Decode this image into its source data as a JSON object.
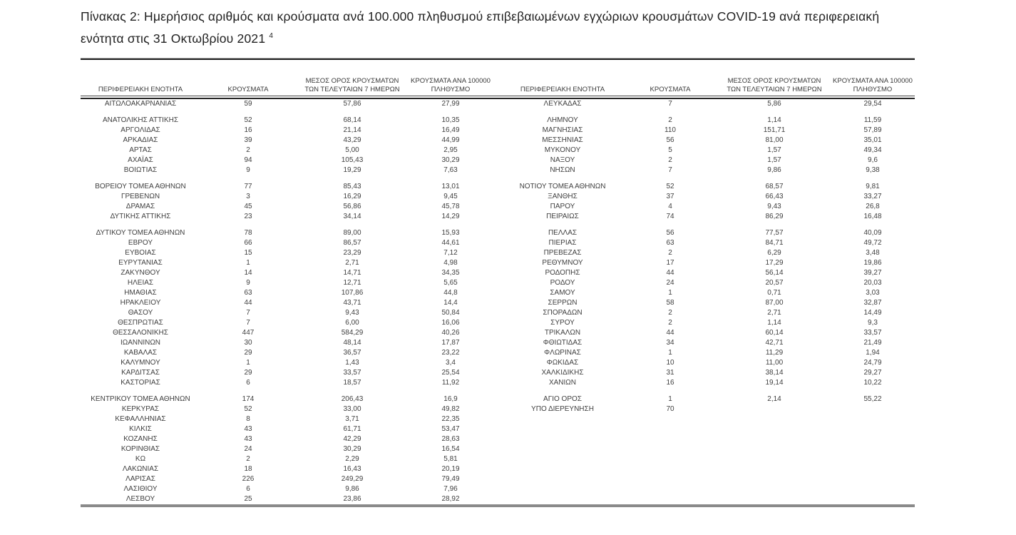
{
  "page": {
    "title_line1": "Πίνακας 2:  Ημερήσιος αριθμός και κρούσματα ανά 100.000 πληθυσμού επιβεβαιωμένων εγχώριων κρουσμάτων COVID-19 ανά περιφερειακή",
    "title_line2": "ενότητα στις 31 Οκτωβρίου 2021 ",
    "title_superscript": "4"
  },
  "table": {
    "headers": {
      "region": "ΠΕΡΙΦΕΡΕΙΑΚΗ ΕΝΟΤΗΤΑ",
      "cases": "ΚΡΟΥΣΜΑΤΑ",
      "avg7_line1": "ΜΕΣΟΣ ΟΡΟΣ ΚΡΟΥΣΜΑΤΩΝ",
      "avg7_line2": "ΤΩΝ ΤΕΛΕΥΤΑΙΩΝ 7 ΗΜΕΡΩΝ",
      "per100k_line1": "ΚΡΟΥΣΜΑΤΑ ΑΝΑ 100000",
      "per100k_line2": "ΠΛΗΘΥΣΜΟ"
    },
    "groups": [
      {
        "left": [
          [
            "ΑΙΤΩΛΟΑΚΑΡΝΑΝΙΑΣ",
            "59",
            "57,86",
            "27,99"
          ]
        ],
        "right": [
          [
            "ΛΕΥΚΑΔΑΣ",
            "7",
            "5,86",
            "29,54"
          ]
        ]
      },
      {
        "left": [
          [
            "ΑΝΑΤΟΛΙΚΗΣ ΑΤΤΙΚΗΣ",
            "52",
            "68,14",
            "10,35"
          ],
          [
            "ΑΡΓΟΛΙΔΑΣ",
            "16",
            "21,14",
            "16,49"
          ],
          [
            "ΑΡΚΑΔΙΑΣ",
            "39",
            "43,29",
            "44,99"
          ],
          [
            "ΑΡΤΑΣ",
            "2",
            "5,00",
            "2,95"
          ],
          [
            "ΑΧΑΪΑΣ",
            "94",
            "105,43",
            "30,29"
          ],
          [
            "ΒΟΙΩΤΙΑΣ",
            "9",
            "19,29",
            "7,63"
          ]
        ],
        "right": [
          [
            "ΛΗΜΝΟΥ",
            "2",
            "1,14",
            "11,59"
          ],
          [
            "ΜΑΓΝΗΣΙΑΣ",
            "110",
            "151,71",
            "57,89"
          ],
          [
            "ΜΕΣΣΗΝΙΑΣ",
            "56",
            "81,00",
            "35,01"
          ],
          [
            "ΜΥΚΟΝΟΥ",
            "5",
            "1,57",
            "49,34"
          ],
          [
            "ΝΑΞΟΥ",
            "2",
            "1,57",
            "9,6"
          ],
          [
            "ΝΗΣΩΝ",
            "7",
            "9,86",
            "9,38"
          ]
        ]
      },
      {
        "left": [
          [
            "ΒΟΡΕΙΟΥ ΤΟΜΕΑ ΑΘΗΝΩΝ",
            "77",
            "85,43",
            "13,01"
          ],
          [
            "ΓΡΕΒΕΝΩΝ",
            "3",
            "16,29",
            "9,45"
          ],
          [
            "ΔΡΑΜΑΣ",
            "45",
            "56,86",
            "45,78"
          ],
          [
            "ΔΥΤΙΚΗΣ ΑΤΤΙΚΗΣ",
            "23",
            "34,14",
            "14,29"
          ]
        ],
        "right": [
          [
            "ΝΟΤΙΟΥ ΤΟΜΕΑ ΑΘΗΝΩΝ",
            "52",
            "68,57",
            "9,81"
          ],
          [
            "ΞΑΝΘΗΣ",
            "37",
            "66,43",
            "33,27"
          ],
          [
            "ΠΑΡΟΥ",
            "4",
            "9,43",
            "26,8"
          ],
          [
            "ΠΕΙΡΑΙΩΣ",
            "74",
            "86,29",
            "16,48"
          ]
        ]
      },
      {
        "left": [
          [
            "ΔΥΤΙΚΟΥ ΤΟΜΕΑ ΑΘΗΝΩΝ",
            "78",
            "89,00",
            "15,93"
          ],
          [
            "ΕΒΡΟΥ",
            "66",
            "86,57",
            "44,61"
          ],
          [
            "ΕΥΒΟΙΑΣ",
            "15",
            "23,29",
            "7,12"
          ],
          [
            "ΕΥΡΥΤΑΝΙΑΣ",
            "1",
            "2,71",
            "4,98"
          ],
          [
            "ΖΑΚΥΝΘΟΥ",
            "14",
            "14,71",
            "34,35"
          ],
          [
            "ΗΛΕΙΑΣ",
            "9",
            "12,71",
            "5,65"
          ],
          [
            "ΗΜΑΘΙΑΣ",
            "63",
            "107,86",
            "44,8"
          ],
          [
            "ΗΡΑΚΛΕΙΟΥ",
            "44",
            "43,71",
            "14,4"
          ],
          [
            "ΘΑΣΟΥ",
            "7",
            "9,43",
            "50,84"
          ],
          [
            "ΘΕΣΠΡΩΤΙΑΣ",
            "7",
            "6,00",
            "16,06"
          ],
          [
            "ΘΕΣΣΑΛΟΝΙΚΗΣ",
            "447",
            "584,29",
            "40,26"
          ],
          [
            "ΙΩΑΝΝΙΝΩΝ",
            "30",
            "48,14",
            "17,87"
          ],
          [
            "ΚΑΒΑΛΑΣ",
            "29",
            "36,57",
            "23,22"
          ],
          [
            "ΚΑΛΥΜΝΟΥ",
            "1",
            "1,43",
            "3,4"
          ],
          [
            "ΚΑΡΔΙΤΣΑΣ",
            "29",
            "33,57",
            "25,54"
          ],
          [
            "ΚΑΣΤΟΡΙΑΣ",
            "6",
            "18,57",
            "11,92"
          ]
        ],
        "right": [
          [
            "ΠΕΛΛΑΣ",
            "56",
            "77,57",
            "40,09"
          ],
          [
            "ΠΙΕΡΙΑΣ",
            "63",
            "84,71",
            "49,72"
          ],
          [
            "ΠΡΕΒΕΖΑΣ",
            "2",
            "6,29",
            "3,48"
          ],
          [
            "ΡΕΘΥΜΝΟΥ",
            "17",
            "17,29",
            "19,86"
          ],
          [
            "ΡΟΔΟΠΗΣ",
            "44",
            "56,14",
            "39,27"
          ],
          [
            "ΡΟΔΟΥ",
            "24",
            "20,57",
            "20,03"
          ],
          [
            "ΣΑΜΟΥ",
            "1",
            "0,71",
            "3,03"
          ],
          [
            "ΣΕΡΡΩΝ",
            "58",
            "87,00",
            "32,87"
          ],
          [
            "ΣΠΟΡΑΔΩΝ",
            "2",
            "2,71",
            "14,49"
          ],
          [
            "ΣΥΡΟΥ",
            "2",
            "1,14",
            "9,3"
          ],
          [
            "ΤΡΙΚΑΛΩΝ",
            "44",
            "60,14",
            "33,57"
          ],
          [
            "ΦΘΙΩΤΙΔΑΣ",
            "34",
            "42,71",
            "21,49"
          ],
          [
            "ΦΛΩΡΙΝΑΣ",
            "1",
            "11,29",
            "1,94"
          ],
          [
            "ΦΩΚΙΔΑΣ",
            "10",
            "11,00",
            "24,79"
          ],
          [
            "ΧΑΛΚΙΔΙΚΗΣ",
            "31",
            "38,14",
            "29,27"
          ],
          [
            "ΧΑΝΙΩΝ",
            "16",
            "19,14",
            "10,22"
          ]
        ]
      },
      {
        "left": [
          [
            "ΚΕΝΤΡΙΚΟΥ ΤΟΜΕΑ ΑΘΗΝΩΝ",
            "174",
            "206,43",
            "16,9"
          ],
          [
            "ΚΕΡΚΥΡΑΣ",
            "52",
            "33,00",
            "49,82"
          ],
          [
            "ΚΕΦΑΛΛΗΝΙΑΣ",
            "8",
            "3,71",
            "22,35"
          ],
          [
            "ΚΙΛΚΙΣ",
            "43",
            "61,71",
            "53,47"
          ],
          [
            "ΚΟΖΑΝΗΣ",
            "43",
            "42,29",
            "28,63"
          ],
          [
            "ΚΟΡΙΝΘΙΑΣ",
            "24",
            "30,29",
            "16,54"
          ],
          [
            "ΚΩ",
            "2",
            "2,29",
            "5,81"
          ],
          [
            "ΛΑΚΩΝΙΑΣ",
            "18",
            "16,43",
            "20,19"
          ],
          [
            "ΛΑΡΙΣΑΣ",
            "226",
            "249,29",
            "79,49"
          ],
          [
            "ΛΑΣΙΘΙΟΥ",
            "6",
            "9,86",
            "7,96"
          ],
          [
            "ΛΕΣΒΟΥ",
            "25",
            "23,86",
            "28,92"
          ]
        ],
        "right": [
          [
            "ΑΓΙΟ ΟΡΟΣ",
            "1",
            "2,14",
            "55,22"
          ],
          [
            "ΥΠΟ ΔΙΕΡΕΥΝΗΣΗ",
            "70",
            "",
            ""
          ]
        ]
      }
    ]
  }
}
